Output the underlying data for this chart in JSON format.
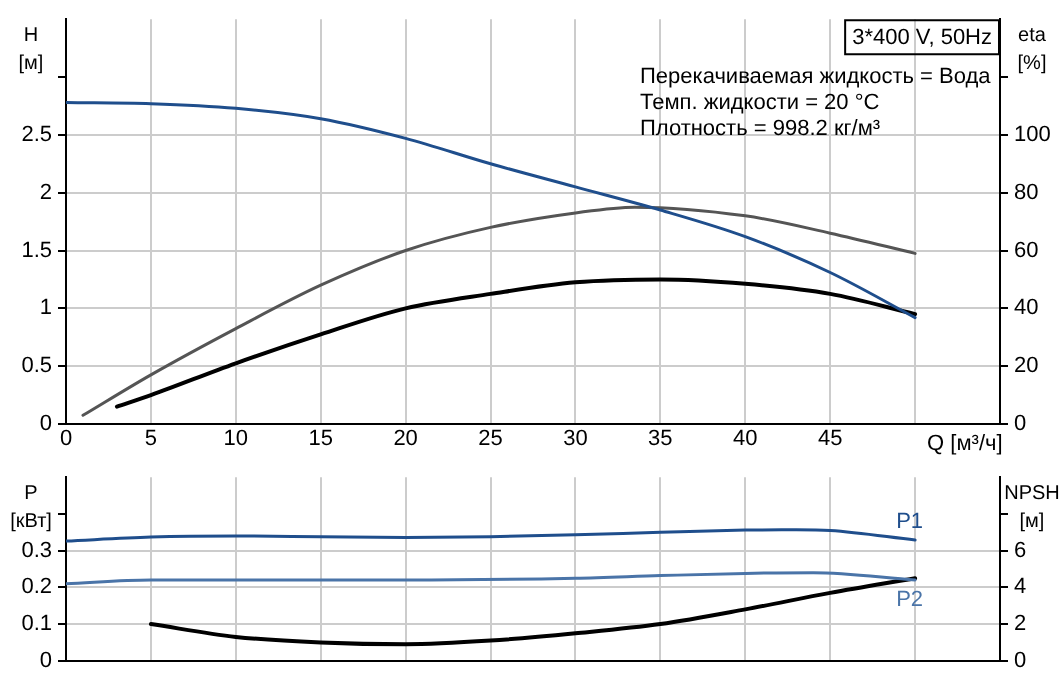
{
  "chart_data": [
    {
      "type": "line",
      "title": "3*400 V, 50Hz",
      "xlabel": "Q [м³/ч]",
      "ylabel": "H [м]",
      "y2label": "eta [%]",
      "annotations": [
        "Перекачиваемая жидкость = Вода",
        "Темп. жидкости = 20 °C",
        "Плотность = 998.2 кг/м³"
      ],
      "xlim": [
        0,
        55
      ],
      "xticks": [
        0,
        5,
        10,
        15,
        20,
        25,
        30,
        35,
        40,
        45,
        {
          "value": 50,
          "label": null
        }
      ],
      "ylim": [
        0,
        3.5
      ],
      "yticks": [
        0,
        0.5,
        1,
        1.5,
        2,
        2.5,
        {
          "value": 3,
          "label": null
        }
      ],
      "y2lim": [
        0,
        140
      ],
      "y2ticks": [
        0,
        20,
        40,
        60,
        80,
        100,
        {
          "value": 120,
          "label": null
        }
      ],
      "grid": true,
      "legend": false,
      "series": [
        {
          "color": "#1f4e8c",
          "x": [
            0,
            5,
            10,
            15,
            20,
            25,
            30,
            35,
            40,
            45,
            50
          ],
          "values": [
            2.78,
            2.77,
            2.73,
            2.64,
            2.47,
            2.25,
            2.05,
            1.85,
            1.62,
            1.31,
            0.92
          ]
        },
        {
          "color": "#555555",
          "axis": "y2",
          "x": [
            1,
            5,
            10,
            15,
            20,
            25,
            30,
            33.5,
            40,
            45,
            50
          ],
          "values": [
            3,
            17,
            33,
            48,
            60,
            68,
            73,
            75,
            72,
            66,
            59
          ]
        },
        {
          "color": "#000000",
          "axis": "y2",
          "x": [
            3,
            5,
            10,
            15,
            20,
            25,
            30,
            35,
            40,
            45,
            50
          ],
          "values": [
            6,
            10,
            21,
            31,
            40,
            45,
            49,
            50,
            48.5,
            45,
            38
          ]
        }
      ]
    },
    {
      "type": "line",
      "ylabel": "P [кВт]",
      "y2label": "NPSH [м]",
      "tick_labels": "y",
      "xlim": [
        0,
        55
      ],
      "xticks": [
        0,
        5,
        10,
        15,
        20,
        25,
        30,
        35,
        40,
        45,
        50
      ],
      "ylim": [
        0,
        0.5
      ],
      "yticks": [
        0,
        0.1,
        0.2,
        0.3,
        {
          "value": 0.4,
          "label": null
        }
      ],
      "y2lim": [
        0,
        10
      ],
      "y2ticks": [
        0,
        2,
        4,
        6,
        {
          "value": 8,
          "label": null
        }
      ],
      "grid": true,
      "legend": false,
      "series": [
        {
          "name": "P1",
          "color": "#1f4e8c",
          "x": [
            0,
            5,
            10,
            15,
            20,
            25,
            30,
            35,
            40,
            43,
            45,
            50
          ],
          "values": [
            0.326,
            0.337,
            0.34,
            0.338,
            0.336,
            0.338,
            0.343,
            0.35,
            0.356,
            0.357,
            0.355,
            0.329
          ]
        },
        {
          "name": "P2",
          "color": "#4a74a8",
          "x": [
            0,
            5,
            10,
            20,
            30,
            35,
            40,
            44,
            50
          ],
          "values": [
            0.21,
            0.22,
            0.22,
            0.22,
            0.225,
            0.232,
            0.238,
            0.24,
            0.22
          ]
        },
        {
          "color": "#000000",
          "axis": "y2",
          "x": [
            5,
            10,
            15,
            20,
            25,
            30,
            35,
            40,
            45,
            50
          ],
          "values": [
            2,
            1.3,
            1,
            0.9,
            1.1,
            1.5,
            2,
            2.8,
            3.7,
            4.5
          ]
        }
      ]
    }
  ]
}
